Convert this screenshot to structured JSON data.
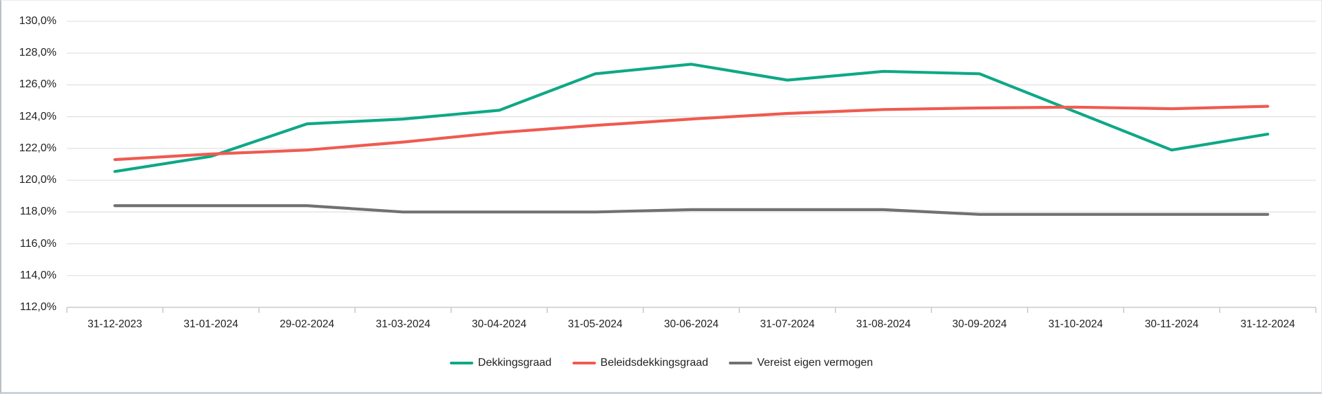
{
  "chart_data": {
    "type": "line",
    "title": "",
    "categories": [
      "31-12-2023",
      "31-01-2024",
      "29-02-2024",
      "31-03-2024",
      "30-04-2024",
      "31-05-2024",
      "30-06-2024",
      "31-07-2024",
      "31-08-2024",
      "30-09-2024",
      "31-10-2024",
      "30-11-2024",
      "31-12-2024"
    ],
    "series": [
      {
        "name": "Dekkingsgraad",
        "color": "#0ea886",
        "values": [
          120.55,
          121.5,
          123.55,
          123.85,
          124.4,
          126.7,
          127.3,
          126.3,
          126.85,
          126.7,
          124.3,
          121.9,
          122.9
        ]
      },
      {
        "name": "Beleidsdekkingsgraad",
        "color": "#ef5b50",
        "values": [
          121.3,
          121.65,
          121.9,
          122.4,
          123.0,
          123.45,
          123.85,
          124.2,
          124.45,
          124.55,
          124.6,
          124.5,
          124.65
        ]
      },
      {
        "name": "Vereist eigen vermogen",
        "color": "#717171",
        "values": [
          118.4,
          118.4,
          118.4,
          118.0,
          118.0,
          118.0,
          118.15,
          118.15,
          118.15,
          117.85,
          117.85,
          117.85,
          117.85
        ]
      }
    ],
    "y_axis": {
      "min": 112.0,
      "max": 130.0,
      "step": 2.0,
      "tick_label_format": "decimal-comma-percent",
      "example_tick_label": "130,0%"
    },
    "x_axis": {
      "tick_marks": "between-categories"
    },
    "grid": true,
    "legend_position": "bottom",
    "colors": {
      "gridline": "#e2e2e2",
      "axis_line": "#bfbfbf",
      "tick": "#bfbfbf",
      "label_text": "#212121"
    }
  }
}
